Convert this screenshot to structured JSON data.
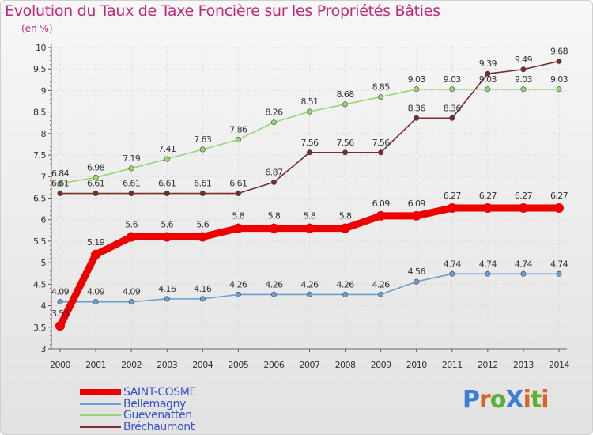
{
  "title": "Evolution du Taux de Taxe Foncière sur les Propriétés Bâties",
  "subtitle": "(en %)",
  "logo": {
    "text": "ProXiti",
    "colors": [
      "#3b7fd4",
      "#e0622a",
      "#5ab030",
      "#3b7fd4",
      "#e0622a",
      "#5ab030",
      "#e0622a"
    ]
  },
  "colors": {
    "title": "#c0287a",
    "axis_accent": "#e0293b",
    "legend_text": "#3550c8"
  },
  "chart_data": {
    "type": "line",
    "title": "Evolution du Taux de Taxe Foncière sur les Propriétés Bâties",
    "ylabel": "(en %)",
    "xlabel": "",
    "ylim": [
      3,
      10
    ],
    "yticks": [
      "3",
      "3.5",
      "4",
      "4.5",
      "5",
      "5.5",
      "6",
      "6.5",
      "7",
      "7.5",
      "8",
      "8.5",
      "9",
      "9.5",
      "10"
    ],
    "x": [
      "2000",
      "2001",
      "2002",
      "2003",
      "2004",
      "2005",
      "2006",
      "2007",
      "2008",
      "2009",
      "2010",
      "2011",
      "2012",
      "2013",
      "2014"
    ],
    "series": [
      {
        "name": "SAINT-COSME",
        "color": "#ee0000",
        "values": [
          3.53,
          5.19,
          5.6,
          5.6,
          5.6,
          5.8,
          5.8,
          5.8,
          5.8,
          6.09,
          6.09,
          6.27,
          6.27,
          6.27,
          6.27
        ],
        "labels": [
          "3.53",
          "5.19",
          "5.6",
          "5.6",
          "5.6",
          "5.8",
          "5.8",
          "5.8",
          "5.8",
          "6.09",
          "6.09",
          "6.27",
          "6.27",
          "6.27",
          "6.27"
        ]
      },
      {
        "name": "Bellemagny",
        "color": "#6a9ed0",
        "values": [
          4.09,
          4.09,
          4.09,
          4.16,
          4.16,
          4.26,
          4.26,
          4.26,
          4.26,
          4.26,
          4.56,
          4.74,
          4.74,
          4.74,
          4.74
        ],
        "labels": [
          "4.09",
          "4.09",
          "4.09",
          "4.16",
          "4.16",
          "4.26",
          "4.26",
          "4.26",
          "4.26",
          "4.26",
          "4.56",
          "4.74",
          "4.74",
          "4.74",
          "4.74"
        ]
      },
      {
        "name": "Guevenatten",
        "color": "#93d873",
        "values": [
          6.84,
          6.98,
          7.19,
          7.41,
          7.63,
          7.86,
          8.26,
          8.51,
          8.68,
          8.85,
          9.03,
          9.03,
          9.03,
          9.03,
          9.03
        ],
        "labels": [
          "6.84",
          "6.98",
          "7.19",
          "7.41",
          "7.63",
          "7.86",
          "8.26",
          "8.51",
          "8.68",
          "8.85",
          "9.03",
          "9.03",
          "9.03",
          "9.03",
          "9.03"
        ]
      },
      {
        "name": "Bréchaumont",
        "color": "#7a2b2b",
        "values": [
          6.61,
          6.61,
          6.61,
          6.61,
          6.61,
          6.61,
          6.87,
          7.56,
          7.56,
          7.56,
          8.36,
          8.36,
          9.39,
          9.49,
          9.68
        ],
        "labels": [
          "6.61",
          "6.61",
          "6.61",
          "6.61",
          "6.61",
          "6.61",
          "6.87",
          "7.56",
          "7.56",
          "7.56",
          "8.36",
          "8.36",
          "9.39",
          "9.49",
          "9.68"
        ]
      }
    ],
    "legend_position": "bottom-left",
    "grid": true
  }
}
